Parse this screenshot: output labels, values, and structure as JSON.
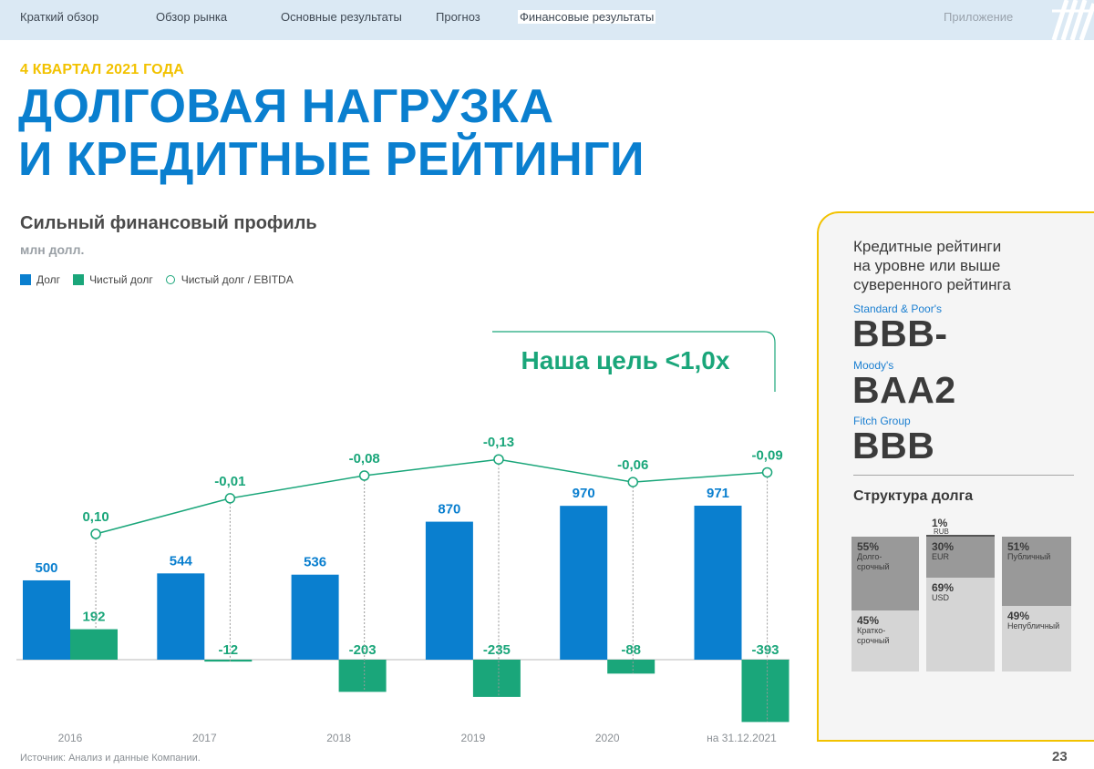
{
  "nav": {
    "items": [
      "Краткий обзор",
      "Обзор рынка",
      "Основные результаты",
      "Прогноз",
      "Финансовые результаты"
    ],
    "appendix": "Приложение"
  },
  "kicker": "4 КВАРТАЛ 2021 ГОДА",
  "title_line1": "ДОЛГОВАЯ НАГРУЗКА",
  "title_line2": "И КРЕДИТНЫЕ РЕЙТИНГИ",
  "subtitle": "Сильный финансовый профиль",
  "unit": "млн долл.",
  "legend": {
    "debt": "Долг",
    "net_debt": "Чистый долг",
    "ratio": "Чистый долг / EBITDA"
  },
  "target_callout": "Наша цель <1,0x",
  "colors": {
    "debt": "#0a7fcf",
    "net_debt": "#1aa67a",
    "ratio": "#1aa67a",
    "accent_yellow": "#f2c200"
  },
  "chart_data": {
    "type": "bar",
    "categories": [
      "2016",
      "2017",
      "2018",
      "2019",
      "2020",
      "на 31.12.2021"
    ],
    "series": [
      {
        "name": "Долг",
        "values": [
          500,
          544,
          536,
          870,
          970,
          971
        ],
        "labels": [
          "500",
          "544",
          "536",
          "870",
          "970",
          "971"
        ]
      },
      {
        "name": "Чистый долг",
        "values": [
          192,
          -12,
          -203,
          -235,
          -88,
          -393
        ],
        "labels": [
          "192",
          "-12",
          "-203",
          "-235",
          "-88",
          "-393"
        ]
      }
    ],
    "line_series": {
      "name": "Чистый долг / EBITDA",
      "values": [
        0.1,
        -0.01,
        -0.08,
        -0.13,
        -0.06,
        -0.09
      ],
      "labels": [
        "0,10",
        "-0,01",
        "-0,08",
        "-0,13",
        "-0,06",
        "-0,09"
      ]
    }
  },
  "ratings_panel": {
    "heading": [
      "Кредитные рейтинги",
      "на уровне или выше",
      "суверенного рейтинга"
    ],
    "ratings": [
      {
        "agency": "Standard & Poor's",
        "rating": "BBB-"
      },
      {
        "agency": "Moody's",
        "rating": "BAA2"
      },
      {
        "agency": "Fitch Group",
        "rating": "BBB"
      }
    ],
    "structure_title": "Структура долга",
    "maturity": {
      "long_pct": "55%",
      "long_label": [
        "Долго-",
        "срочный"
      ],
      "short_pct": "45%",
      "short_label": [
        "Кратко-",
        "срочный"
      ]
    },
    "currency": {
      "rub_pct": "1%",
      "rub_label": "RUB",
      "eur_pct": "30%",
      "eur_label": "EUR",
      "usd_pct": "69%",
      "usd_label": "USD"
    },
    "type": {
      "public_pct": "51%",
      "public_label": "Публичный",
      "nonpublic_pct": "49%",
      "nonpublic_label": "Непубличный"
    }
  },
  "source": "Источник: Анализ и данные Компании.",
  "page_number": "23"
}
